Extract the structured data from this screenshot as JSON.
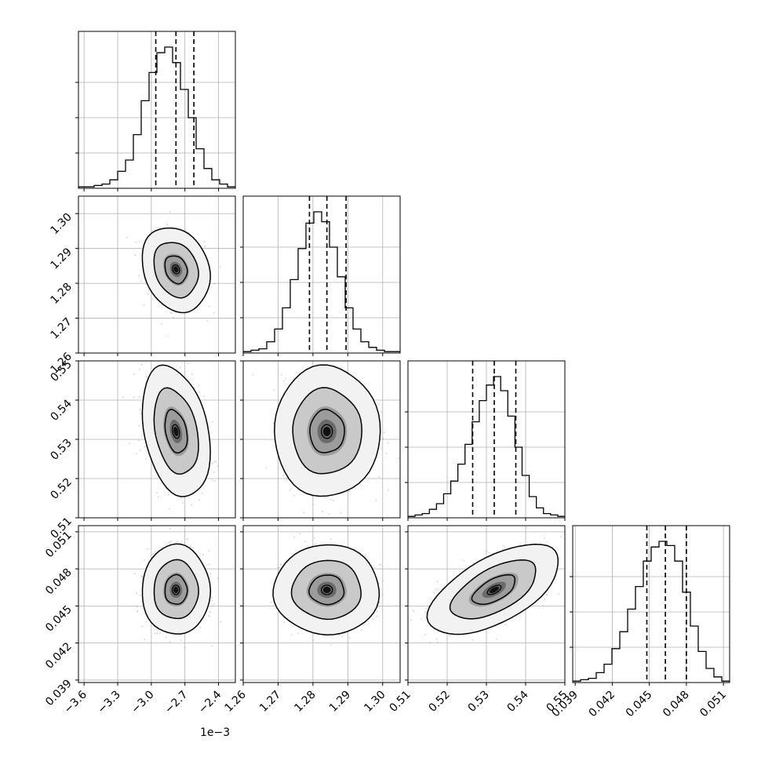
{
  "chart_data": {
    "type": "corner",
    "parameters": [
      {
        "range": [
          -3.65,
          -2.25
        ],
        "ticks": [
          -3.6,
          -3.3,
          -3.0,
          -2.7,
          -2.4
        ],
        "tick_labels": [
          "−3.6",
          "−3.3",
          "−3.0",
          "−2.7",
          "−2.4"
        ],
        "offset_label": "1e−3",
        "median": -2.78,
        "q16": -2.96,
        "q84": -2.62,
        "hist": [
          1,
          1,
          2,
          3,
          6,
          12,
          20,
          38,
          62,
          82,
          96,
          100,
          89,
          70,
          50,
          28,
          14,
          6,
          3,
          1
        ]
      },
      {
        "range": [
          1.26,
          1.305
        ],
        "ticks": [
          1.26,
          1.27,
          1.28,
          1.29,
          1.3
        ],
        "tick_labels": [
          "1.26",
          "1.27",
          "1.28",
          "1.29",
          "1.30"
        ],
        "median": 1.284,
        "q16": 1.279,
        "q84": 1.2895,
        "hist": [
          1,
          2,
          3,
          8,
          17,
          32,
          52,
          74,
          92,
          100,
          93,
          75,
          54,
          32,
          17,
          8,
          4,
          2,
          1,
          1
        ]
      },
      {
        "range": [
          0.51,
          0.55
        ],
        "ticks": [
          0.51,
          0.52,
          0.53,
          0.54,
          0.55
        ],
        "tick_labels": [
          "0.51",
          "0.52",
          "0.53",
          "0.54",
          "0.55"
        ],
        "median": 0.532,
        "q16": 0.5265,
        "q84": 0.5375,
        "hist": [
          1,
          2,
          3,
          6,
          10,
          17,
          26,
          38,
          52,
          68,
          83,
          94,
          100,
          90,
          72,
          50,
          30,
          15,
          7,
          3,
          2,
          1
        ]
      },
      {
        "range": [
          0.0388,
          0.0515
        ],
        "ticks": [
          0.039,
          0.042,
          0.045,
          0.048,
          0.051
        ],
        "tick_labels": [
          "0.039",
          "0.042",
          "0.045",
          "0.048",
          "0.051"
        ],
        "median": 0.0463,
        "q16": 0.0448,
        "q84": 0.048,
        "hist": [
          1,
          2,
          3,
          7,
          13,
          24,
          36,
          52,
          68,
          86,
          96,
          100,
          97,
          86,
          64,
          40,
          22,
          10,
          4,
          1
        ]
      }
    ],
    "pairs": [
      {
        "row": 1,
        "col": 0,
        "sx": 0.1,
        "sy": 0.004,
        "rho": -0.2
      },
      {
        "row": 2,
        "col": 0,
        "sx": 0.1,
        "sy": 0.0055,
        "rho": -0.3
      },
      {
        "row": 2,
        "col": 1,
        "sx": 0.005,
        "sy": 0.0055,
        "rho": 0.0
      },
      {
        "row": 3,
        "col": 0,
        "sx": 0.1,
        "sy": 0.0012,
        "rho": 0.0
      },
      {
        "row": 3,
        "col": 1,
        "sx": 0.005,
        "sy": 0.0012,
        "rho": 0.0
      },
      {
        "row": 3,
        "col": 2,
        "sx": 0.0055,
        "sy": 0.0012,
        "rho": 0.6
      }
    ],
    "grid": true,
    "legend": "none"
  }
}
